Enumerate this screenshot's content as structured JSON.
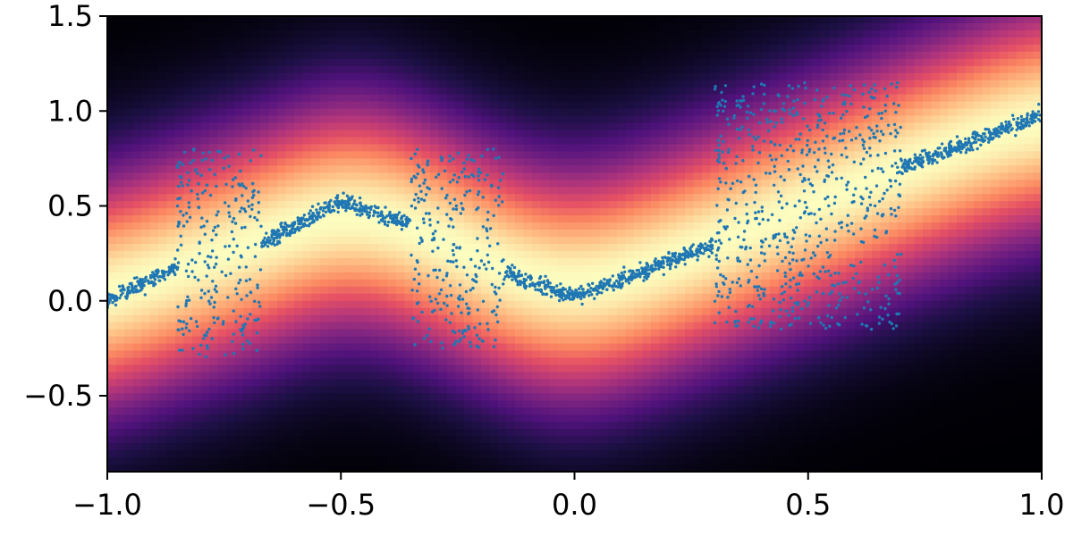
{
  "chart_data": {
    "type": "scatter",
    "title": "",
    "xlabel": "",
    "ylabel": "",
    "xlim": [
      -1.0,
      1.0
    ],
    "ylim": [
      -0.9,
      1.5
    ],
    "x_ticks": [
      -1.0,
      -0.5,
      0.0,
      0.5,
      1.0
    ],
    "x_tick_labels": [
      "−1.0",
      "−0.5",
      "0.0",
      "0.5",
      "1.0"
    ],
    "y_ticks": [
      -0.5,
      0.0,
      0.5,
      1.0,
      1.5
    ],
    "y_tick_labels": [
      "−0.5",
      "0.0",
      "0.5",
      "1.0",
      "1.5"
    ],
    "grid": false,
    "legend": "none",
    "background": {
      "type": "heatmap",
      "colormap": "magma",
      "description_values": "density highest along the central curve of the data"
    },
    "series": [
      {
        "marker_color": "#1f77b4",
        "approx_point_count": 2000,
        "segments": [
          {
            "x_range": [
              -1.0,
              -0.85
            ],
            "center_line": [
              [
                -1.0,
                0.0
              ],
              [
                -0.85,
                0.18
              ]
            ],
            "band_half_width": 0.05,
            "type": "band"
          },
          {
            "x_range": [
              -0.85,
              -0.67
            ],
            "y_range": [
              -0.3,
              0.8
            ],
            "type": "scatter-block"
          },
          {
            "x_range": [
              -0.67,
              -0.35
            ],
            "center_line": [
              [
                -0.67,
                0.3
              ],
              [
                -0.5,
                0.52
              ],
              [
                -0.35,
                0.4
              ]
            ],
            "band_half_width": 0.05,
            "type": "band"
          },
          {
            "x_range": [
              -0.35,
              -0.15
            ],
            "y_range": [
              -0.25,
              0.8
            ],
            "type": "scatter-block"
          },
          {
            "x_range": [
              -0.15,
              0.3
            ],
            "center_line": [
              [
                -0.15,
                0.15
              ],
              [
                0.0,
                0.02
              ],
              [
                0.3,
                0.3
              ]
            ],
            "band_half_width": 0.05,
            "type": "band"
          },
          {
            "x_range": [
              0.3,
              0.7
            ],
            "y_range": [
              -0.15,
              1.15
            ],
            "type": "scatter-block"
          },
          {
            "x_range": [
              0.7,
              1.0
            ],
            "center_line": [
              [
                0.7,
                0.7
              ],
              [
                1.0,
                0.98
              ]
            ],
            "band_half_width": 0.05,
            "type": "band"
          }
        ]
      }
    ]
  }
}
